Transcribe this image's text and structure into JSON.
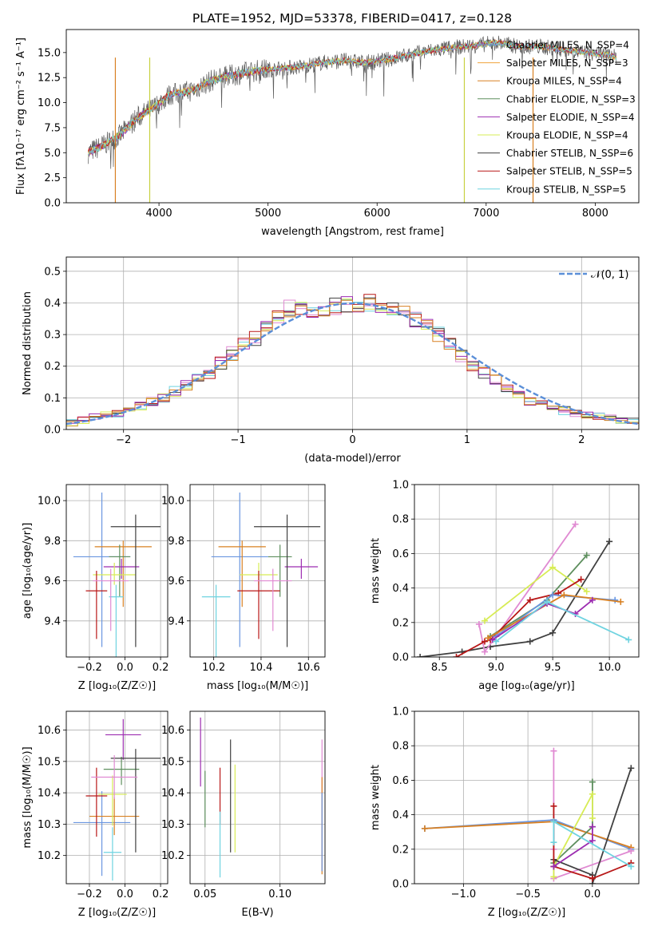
{
  "chart_data": [
    {
      "type": "line",
      "title": "PLATE=1952, MJD=53378, FIBERID=0417, z=0.128",
      "xlabel": "wavelength [Angstrom, rest frame]",
      "ylabel": "Flux [fλ10⁻¹⁷ erg cm⁻² s⁻¹ A⁻¹]",
      "xlim": [
        3150,
        8400
      ],
      "ylim": [
        0,
        17.3
      ],
      "xticks": [
        "4000",
        "5000",
        "6000",
        "7000",
        "8000"
      ],
      "yticks": [
        "0.0",
        "2.5",
        "5.0",
        "7.5",
        "10.0",
        "12.5",
        "15.0"
      ],
      "legend_position": "top-right",
      "spectrum": {
        "x": [
          3350,
          3500,
          3650,
          3800,
          3950,
          4100,
          4300,
          4500,
          4700,
          4900,
          5100,
          5300,
          5500,
          5700,
          5900,
          6100,
          6300,
          6500,
          6700,
          6900,
          7100,
          7300,
          7500,
          7700,
          7900,
          8100,
          8200
        ],
        "y": [
          5.0,
          5.8,
          6.8,
          8.5,
          9.5,
          10.8,
          11.2,
          12.3,
          12.8,
          13.2,
          13.4,
          13.6,
          14.0,
          14.2,
          14.0,
          14.3,
          14.8,
          15.2,
          15.5,
          15.7,
          16.0,
          15.6,
          15.6,
          15.3,
          15.0,
          14.8,
          14.5
        ]
      },
      "series": [
        {
          "name": "Chabrier MILES, N_SSP=4",
          "color": "#6a96e0"
        },
        {
          "name": "Salpeter MILES, N_SSP=3",
          "color": "#f0a23b"
        },
        {
          "name": "Kroupa MILES, N_SSP=4",
          "color": "#d88022"
        },
        {
          "name": "Chabrier ELODIE, N_SSP=3",
          "color": "#5e8f5e"
        },
        {
          "name": "Salpeter ELODIE, N_SSP=4",
          "color": "#9c2cb0"
        },
        {
          "name": "Kroupa ELODIE, N_SSP=4",
          "color": "#d7ec55"
        },
        {
          "name": "Chabrier STELIB, N_SSP=6",
          "color": "#404040"
        },
        {
          "name": "Salpeter STELIB, N_SSP=5",
          "color": "#b81818"
        },
        {
          "name": "Kroupa STELIB, N_SSP=5",
          "color": "#6fd3e0"
        }
      ]
    },
    {
      "type": "bar",
      "xlabel": "(data-model)/error",
      "ylabel": "Normed distribution",
      "xlim": [
        -2.5,
        2.5
      ],
      "ylim": [
        0,
        0.545
      ],
      "xticks": [
        "−2",
        "−1",
        "0",
        "1",
        "2"
      ],
      "yticks": [
        "0.0",
        "0.1",
        "0.2",
        "0.3",
        "0.4",
        "0.5"
      ],
      "grid": true,
      "legend": "𝒩(0, 1)",
      "legend_position": "top-right",
      "bin_width": 0.1,
      "histogram": [
        0.02,
        0.03,
        0.04,
        0.045,
        0.05,
        0.06,
        0.075,
        0.09,
        0.1,
        0.12,
        0.14,
        0.16,
        0.18,
        0.21,
        0.24,
        0.27,
        0.29,
        0.32,
        0.35,
        0.38,
        0.39,
        0.38,
        0.38,
        0.39,
        0.4,
        0.4,
        0.4,
        0.39,
        0.38,
        0.37,
        0.35,
        0.33,
        0.3,
        0.27,
        0.23,
        0.2,
        0.18,
        0.16,
        0.13,
        0.11,
        0.09,
        0.08,
        0.07,
        0.06,
        0.05,
        0.045,
        0.04,
        0.035,
        0.03,
        0.03
      ],
      "series_colors": [
        "#e08ad2",
        "#6fd3e0",
        "#b81818",
        "#d7ec55",
        "#404040",
        "#9c2cb0",
        "#d88022"
      ]
    },
    {
      "type": "scatter",
      "xlabel": "Z [log₁₀(Z/Z☉)]",
      "ylabel": "age  [log₁₀(age/yr)]",
      "xlim": [
        -0.33,
        0.24
      ],
      "ylim": [
        9.22,
        10.08
      ],
      "xticks": [
        "−0.2",
        "0.0",
        "0.2"
      ],
      "yticks": [
        "9.4",
        "9.6",
        "9.8",
        "10.0"
      ],
      "grid": true,
      "points": [
        {
          "x": -0.13,
          "y": 9.72,
          "xerr": 0.16,
          "yerr_lo": 0.45,
          "yerr_hi": 0.32,
          "color": "#6a96e0"
        },
        {
          "x": -0.01,
          "y": 9.77,
          "xerr": 0.16,
          "yerr_lo": 0.3,
          "yerr_hi": 0.03,
          "color": "#d88022"
        },
        {
          "x": -0.03,
          "y": 9.72,
          "xerr": 0.06,
          "yerr_lo": 0.2,
          "yerr_hi": 0.06,
          "color": "#5e8f5e"
        },
        {
          "x": -0.02,
          "y": 9.67,
          "xerr": 0.1,
          "yerr_lo": 0.06,
          "yerr_hi": 0.04,
          "color": "#9c2cb0"
        },
        {
          "x": -0.06,
          "y": 9.63,
          "xerr": 0.12,
          "yerr_lo": 0.05,
          "yerr_hi": 0.06,
          "color": "#d7ec55"
        },
        {
          "x": 0.06,
          "y": 9.87,
          "xerr": 0.14,
          "yerr_lo": 0.6,
          "yerr_hi": 0.06,
          "color": "#404040"
        },
        {
          "x": -0.16,
          "y": 9.55,
          "xerr": 0.06,
          "yerr_lo": 0.24,
          "yerr_hi": 0.1,
          "color": "#b81818"
        },
        {
          "x": -0.05,
          "y": 9.52,
          "xerr": 0.04,
          "yerr_lo": 0.3,
          "yerr_hi": 0.06,
          "color": "#6fd3e0"
        },
        {
          "x": -0.08,
          "y": 9.6,
          "xerr": 0.1,
          "yerr_lo": 0.25,
          "yerr_hi": 0.06,
          "color": "#e08ad2"
        }
      ]
    },
    {
      "type": "scatter",
      "xlabel": "mass [log₁₀(M/M☉)]",
      "ylabel": "",
      "xlim": [
        10.1,
        10.67
      ],
      "ylim": [
        9.22,
        10.08
      ],
      "xticks": [
        "10.2",
        "10.4",
        "10.6"
      ],
      "yticks": [
        "9.4",
        "9.6",
        "9.8",
        "10.0"
      ],
      "grid": true,
      "points": [
        {
          "x": 10.31,
          "y": 9.72,
          "xerr": 0.12,
          "yerr_lo": 0.45,
          "yerr_hi": 0.32,
          "color": "#6a96e0"
        },
        {
          "x": 10.32,
          "y": 9.77,
          "xerr": 0.1,
          "yerr_lo": 0.3,
          "yerr_hi": 0.03,
          "color": "#d88022"
        },
        {
          "x": 10.48,
          "y": 9.72,
          "xerr": 0.05,
          "yerr_lo": 0.2,
          "yerr_hi": 0.06,
          "color": "#5e8f5e"
        },
        {
          "x": 10.57,
          "y": 9.67,
          "xerr": 0.07,
          "yerr_lo": 0.06,
          "yerr_hi": 0.04,
          "color": "#9c2cb0"
        },
        {
          "x": 10.39,
          "y": 9.63,
          "xerr": 0.08,
          "yerr_lo": 0.05,
          "yerr_hi": 0.06,
          "color": "#d7ec55"
        },
        {
          "x": 10.51,
          "y": 9.87,
          "xerr": 0.14,
          "yerr_lo": 0.6,
          "yerr_hi": 0.06,
          "color": "#404040"
        },
        {
          "x": 10.39,
          "y": 9.55,
          "xerr": 0.09,
          "yerr_lo": 0.24,
          "yerr_hi": 0.1,
          "color": "#b81818"
        },
        {
          "x": 10.21,
          "y": 9.52,
          "xerr": 0.06,
          "yerr_lo": 0.3,
          "yerr_hi": 0.06,
          "color": "#6fd3e0"
        },
        {
          "x": 10.45,
          "y": 9.6,
          "xerr": 0.08,
          "yerr_lo": 0.25,
          "yerr_hi": 0.06,
          "color": "#e08ad2"
        }
      ]
    },
    {
      "type": "line",
      "xlabel": "age  [log₁₀(age/yr)]",
      "ylabel": "mass weight",
      "xlim": [
        8.28,
        10.26
      ],
      "ylim": [
        0,
        1
      ],
      "xticks": [
        "8.5",
        "9.0",
        "9.5",
        "10.0"
      ],
      "yticks": [
        "0.0",
        "0.2",
        "0.4",
        "0.6",
        "0.8",
        "1.0"
      ],
      "grid": true,
      "series": [
        {
          "color": "#404040",
          "x": [
            8.33,
            8.7,
            8.95,
            9.3,
            9.5,
            10.0
          ],
          "y": [
            0.0,
            0.03,
            0.06,
            0.09,
            0.14,
            0.67
          ]
        },
        {
          "color": "#e08ad2",
          "x": [
            8.85,
            8.9,
            9.0,
            9.7
          ],
          "y": [
            0.19,
            0.03,
            0.12,
            0.77
          ]
        },
        {
          "color": "#5e8f5e",
          "x": [
            8.95,
            9.45,
            9.8
          ],
          "y": [
            0.12,
            0.33,
            0.59
          ]
        },
        {
          "color": "#d7ec55",
          "x": [
            8.9,
            9.5,
            9.8
          ],
          "y": [
            0.21,
            0.52,
            0.38
          ]
        },
        {
          "color": "#b81818",
          "x": [
            8.65,
            8.9,
            8.95,
            9.3,
            9.55,
            9.75
          ],
          "y": [
            0.0,
            0.09,
            0.1,
            0.33,
            0.37,
            0.45
          ]
        },
        {
          "color": "#6a96e0",
          "x": [
            9.0,
            9.5,
            10.05
          ],
          "y": [
            0.12,
            0.36,
            0.33
          ]
        },
        {
          "color": "#d88022",
          "x": [
            8.93,
            9.6,
            10.1
          ],
          "y": [
            0.11,
            0.36,
            0.32
          ]
        },
        {
          "color": "#9c2cb0",
          "x": [
            8.97,
            9.45,
            9.7,
            9.85
          ],
          "y": [
            0.1,
            0.31,
            0.25,
            0.33
          ]
        },
        {
          "color": "#6fd3e0",
          "x": [
            9.0,
            9.45,
            10.17
          ],
          "y": [
            0.09,
            0.32,
            0.1
          ]
        }
      ]
    },
    {
      "type": "scatter",
      "xlabel": "Z [log₁₀(Z/Z☉)]",
      "ylabel": "mass [log₁₀(M/M☉)]",
      "xlim": [
        -0.33,
        0.24
      ],
      "ylim": [
        10.11,
        10.66
      ],
      "xticks": [
        "−0.2",
        "0.0",
        "0.2"
      ],
      "yticks": [
        "10.2",
        "10.3",
        "10.4",
        "10.5",
        "10.6"
      ],
      "grid": true,
      "points": [
        {
          "x": -0.13,
          "y": 10.305,
          "xerr": 0.16,
          "yerr_lo": 0.17,
          "yerr_hi": 0.1,
          "color": "#6a96e0"
        },
        {
          "x": -0.06,
          "y": 10.325,
          "xerr": 0.14,
          "yerr_lo": 0.06,
          "yerr_hi": 0.06,
          "color": "#d88022"
        },
        {
          "x": -0.02,
          "y": 10.475,
          "xerr": 0.1,
          "yerr_lo": 0.05,
          "yerr_hi": 0.04,
          "color": "#5e8f5e"
        },
        {
          "x": -0.01,
          "y": 10.585,
          "xerr": 0.1,
          "yerr_lo": 0.08,
          "yerr_hi": 0.05,
          "color": "#9c2cb0"
        },
        {
          "x": -0.07,
          "y": 10.395,
          "xerr": 0.08,
          "yerr_lo": 0.1,
          "yerr_hi": 0.06,
          "color": "#d7ec55"
        },
        {
          "x": 0.06,
          "y": 10.51,
          "xerr": 0.14,
          "yerr_lo": 0.3,
          "yerr_hi": 0.03,
          "color": "#404040"
        },
        {
          "x": -0.16,
          "y": 10.39,
          "xerr": 0.06,
          "yerr_lo": 0.13,
          "yerr_hi": 0.09,
          "color": "#b81818"
        },
        {
          "x": -0.07,
          "y": 10.21,
          "xerr": 0.05,
          "yerr_lo": 0.09,
          "yerr_hi": 0.08,
          "color": "#6fd3e0"
        },
        {
          "x": -0.06,
          "y": 10.45,
          "xerr": 0.13,
          "yerr_lo": 0.07,
          "yerr_hi": 0.07,
          "color": "#e08ad2"
        }
      ]
    },
    {
      "type": "scatter",
      "xlabel": "E(B-V)",
      "ylabel": "",
      "xlim": [
        0.04,
        0.13
      ],
      "ylim": [
        10.11,
        10.66
      ],
      "xticks": [
        "0.05",
        "0.10"
      ],
      "yticks": [
        "10.2",
        "10.3",
        "10.4",
        "10.5",
        "10.6"
      ],
      "grid": true,
      "points": [
        {
          "x": 0.047,
          "y": 10.53,
          "yerr_lo": 0.11,
          "yerr_hi": 0.11,
          "color": "#9c2cb0"
        },
        {
          "x": 0.05,
          "y": 10.36,
          "yerr_lo": 0.07,
          "yerr_hi": 0.11,
          "color": "#5e8f5e"
        },
        {
          "x": 0.06,
          "y": 10.39,
          "yerr_lo": 0.09,
          "yerr_hi": 0.09,
          "color": "#b81818"
        },
        {
          "x": 0.06,
          "y": 10.21,
          "yerr_lo": 0.08,
          "yerr_hi": 0.13,
          "color": "#6fd3e0"
        },
        {
          "x": 0.067,
          "y": 10.42,
          "yerr_lo": 0.21,
          "yerr_hi": 0.15,
          "color": "#404040"
        },
        {
          "x": 0.07,
          "y": 10.35,
          "yerr_lo": 0.14,
          "yerr_hi": 0.14,
          "color": "#d7ec55"
        },
        {
          "x": 0.128,
          "y": 10.32,
          "yerr_lo": 0.17,
          "yerr_hi": 0.25,
          "color": "#e08ad2"
        },
        {
          "x": 0.128,
          "y": 10.3,
          "yerr_lo": 0.16,
          "yerr_hi": 0.15,
          "color": "#d88022"
        },
        {
          "x": 0.128,
          "y": 10.3,
          "yerr_lo": 0.15,
          "yerr_hi": 0.1,
          "color": "#6a96e0"
        }
      ]
    },
    {
      "type": "line",
      "xlabel": "Z [log₁₀(Z/Z☉)]",
      "ylabel": "mass weight",
      "xlim": [
        -1.38,
        0.36
      ],
      "ylim": [
        0,
        1
      ],
      "xticks": [
        "−1.0",
        "−0.5",
        "0.0"
      ],
      "yticks": [
        "0.0",
        "0.2",
        "0.4",
        "0.6",
        "0.8",
        "1.0"
      ],
      "grid": true,
      "series": [
        {
          "color": "#6a96e0",
          "x": [
            -1.3,
            -0.3,
            0.3
          ],
          "y": [
            0.32,
            0.37,
            0.2
          ]
        },
        {
          "color": "#d88022",
          "x": [
            -1.3,
            -0.3,
            0.3
          ],
          "y": [
            0.32,
            0.36,
            0.21
          ]
        },
        {
          "color": "#e08ad2",
          "x": [
            -0.3,
            -0.3,
            -0.3,
            0.3
          ],
          "y": [
            0.77,
            0.2,
            0.03,
            0.19
          ]
        },
        {
          "color": "#5e8f5e",
          "x": [
            -0.3,
            0.0,
            0.0
          ],
          "y": [
            0.12,
            0.33,
            0.59
          ]
        },
        {
          "color": "#d7ec55",
          "x": [
            -0.3,
            -0.3,
            0.0,
            0.0
          ],
          "y": [
            0.04,
            0.1,
            0.52,
            0.38
          ]
        },
        {
          "color": "#404040",
          "x": [
            -0.3,
            0.0,
            0.0,
            0.3
          ],
          "y": [
            0.14,
            0.05,
            0.0,
            0.67
          ]
        },
        {
          "color": "#b81818",
          "x": [
            -0.3,
            -0.3,
            0.0,
            0.3
          ],
          "y": [
            0.45,
            0.1,
            0.03,
            0.12
          ]
        },
        {
          "color": "#9c2cb0",
          "x": [
            -0.3,
            0.0,
            0.0
          ],
          "y": [
            0.1,
            0.25,
            0.33
          ]
        },
        {
          "color": "#6fd3e0",
          "x": [
            -0.3,
            -0.3,
            0.3
          ],
          "y": [
            0.24,
            0.36,
            0.1
          ]
        }
      ]
    }
  ]
}
